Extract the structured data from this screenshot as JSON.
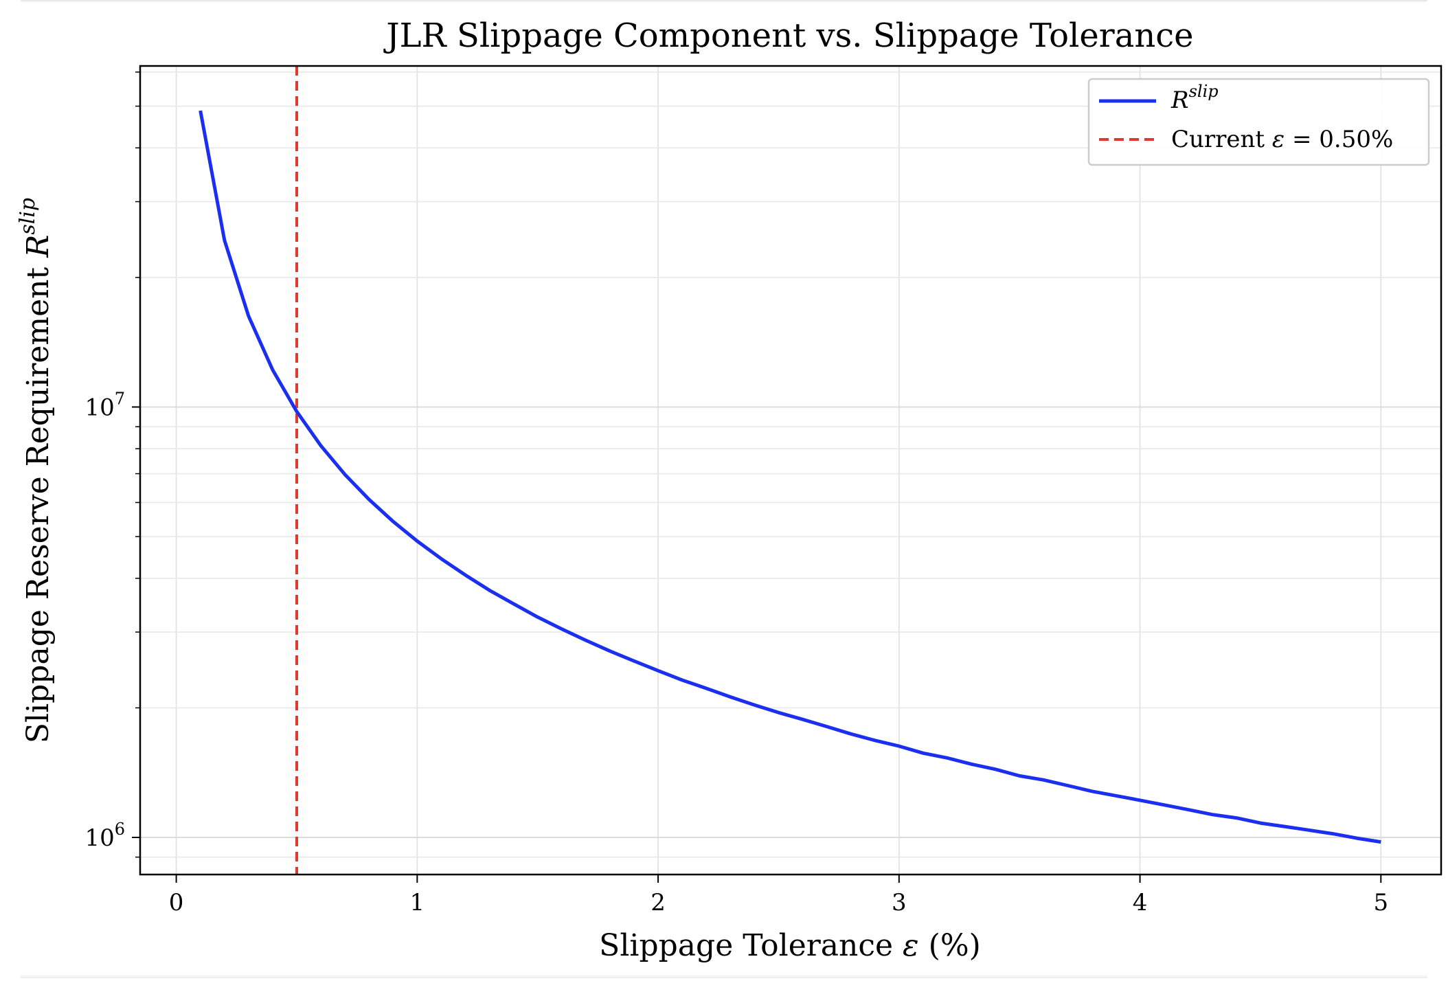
{
  "chart_data": {
    "type": "line",
    "title": "JLR Slippage Component vs. Slippage Tolerance",
    "xlabel": "Slippage Tolerance",
    "xlabel_symbol": "ε",
    "xlabel_unit": "(%)",
    "ylabel": "Slippage Reserve Requirement",
    "ylabel_symbol": "R",
    "ylabel_superscript": "slip",
    "xscale": "linear",
    "yscale": "log",
    "xlim": [
      -0.15,
      5.25
    ],
    "ylim": [
      820000,
      62000000
    ],
    "xticks": [
      0,
      1,
      2,
      3,
      4,
      5
    ],
    "xtick_labels": [
      "0",
      "1",
      "2",
      "3",
      "4",
      "5"
    ],
    "yticks_major": [
      1000000,
      10000000
    ],
    "ytick_labels": [
      {
        "base": "10",
        "exp": "6"
      },
      {
        "base": "10",
        "exp": "7"
      }
    ],
    "grid": true,
    "legend_position": "top-right",
    "series": [
      {
        "name": "R",
        "name_superscript": "slip",
        "color": "#1a2ff0",
        "style": "solid",
        "x": [
          0.1,
          0.2,
          0.3,
          0.4,
          0.5,
          0.6,
          0.7,
          0.8,
          0.9,
          1.0,
          1.1,
          1.2,
          1.3,
          1.4,
          1.5,
          1.6,
          1.7,
          1.8,
          1.9,
          2.0,
          2.1,
          2.2,
          2.3,
          2.4,
          2.5,
          2.6,
          2.7,
          2.8,
          2.9,
          3.0,
          3.1,
          3.2,
          3.3,
          3.4,
          3.5,
          3.6,
          3.7,
          3.8,
          3.9,
          4.0,
          4.1,
          4.2,
          4.3,
          4.4,
          4.5,
          4.6,
          4.7,
          4.8,
          4.9,
          5.0
        ],
        "values": [
          48800000,
          24400000,
          16270000,
          12200000,
          9760000,
          8130000,
          6970000,
          6100000,
          5420000,
          4880000,
          4440000,
          4070000,
          3750000,
          3490000,
          3250000,
          3050000,
          2870000,
          2710000,
          2570000,
          2440000,
          2320000,
          2220000,
          2120000,
          2030000,
          1950000,
          1880000,
          1810000,
          1740000,
          1680000,
          1630000,
          1570000,
          1530000,
          1480000,
          1440000,
          1390000,
          1360000,
          1320000,
          1280000,
          1250000,
          1220000,
          1190000,
          1160000,
          1130000,
          1110000,
          1080000,
          1060000,
          1040000,
          1020000,
          996000,
          976000
        ]
      }
    ],
    "reference_line": {
      "orientation": "vertical",
      "x": 0.5,
      "color": "#e03a2e",
      "style": "dashed",
      "label_prefix": "Current",
      "label_symbol": "ε",
      "label_value": "= 0.50%"
    }
  }
}
